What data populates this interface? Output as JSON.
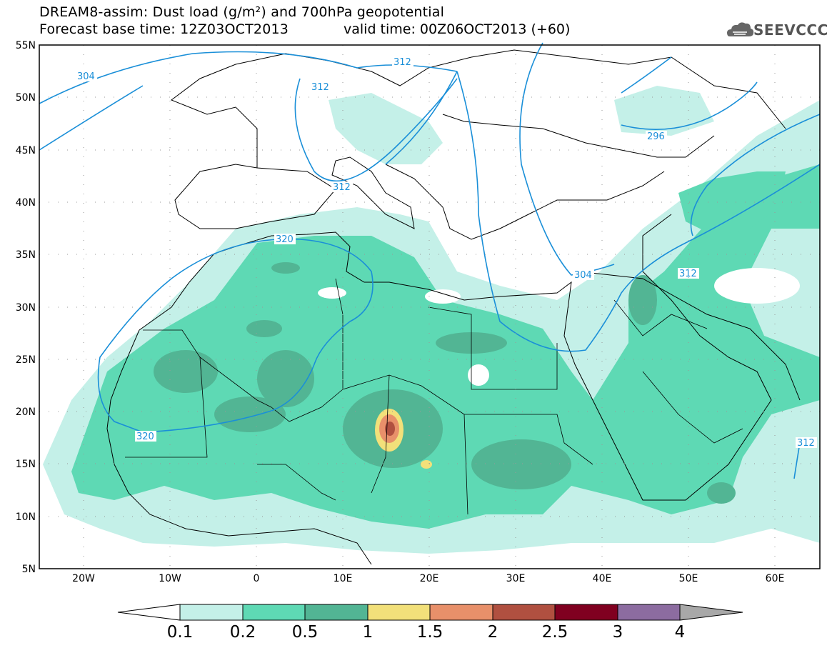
{
  "title": {
    "line1": "DREAM8-assim: Dust load (g/m²) and 700hPa geopotential",
    "line2": "Forecast base time: 12Z03OCT2013",
    "valid": "valid time: 00Z06OCT2013 (+60)"
  },
  "logo": {
    "text": "SEEVCCC",
    "icon": "cloud-icon"
  },
  "axes": {
    "lat_labels": [
      "55N",
      "50N",
      "45N",
      "40N",
      "35N",
      "30N",
      "25N",
      "20N",
      "15N",
      "10N",
      "5N"
    ],
    "lon_labels": [
      "20W",
      "10W",
      "0",
      "10E",
      "20E",
      "30E",
      "40E",
      "50E",
      "60E"
    ],
    "lon_range": [
      -25,
      65
    ],
    "lat_range": [
      5,
      55
    ]
  },
  "contours": {
    "color": "#1a8fd8",
    "labels": [
      "304",
      "312",
      "312",
      "312",
      "320",
      "320",
      "304",
      "312",
      "296",
      "312"
    ]
  },
  "colorbar": {
    "ticks": [
      "0.1",
      "0.2",
      "0.5",
      "1",
      "1.5",
      "2",
      "2.5",
      "3",
      "4"
    ],
    "colors": [
      "#ffffff",
      "#c4f0e8",
      "#5ed9b4",
      "#52b594",
      "#f2e07a",
      "#e8906a",
      "#b05040",
      "#800020",
      "#8c6ca0",
      "#a8a8a8"
    ]
  }
}
